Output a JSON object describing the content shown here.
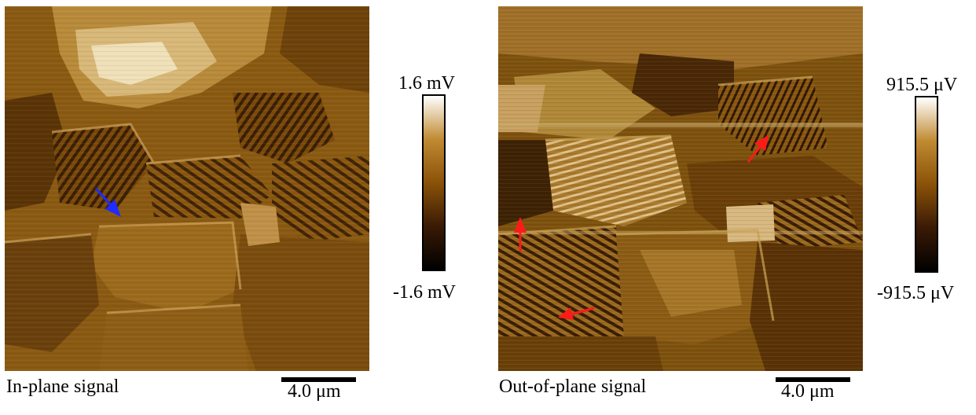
{
  "panels": [
    {
      "caption": "In-plane signal",
      "scale_bar_label": "4.0 μm",
      "colorbar": {
        "max_label": "1.6 mV",
        "min_label": "-1.6 mV"
      },
      "arrows": [
        {
          "color": "#1f2bff"
        }
      ]
    },
    {
      "caption": "Out-of-plane signal",
      "scale_bar_label": "4.0 μm",
      "colorbar": {
        "max_label": "915.5 μV",
        "min_label": "-915.5 μV"
      },
      "arrows": [
        {
          "color": "#ff1a1a"
        },
        {
          "color": "#ff1a1a"
        },
        {
          "color": "#ff1a1a"
        }
      ]
    }
  ],
  "colormap": {
    "colors": [
      "#000000",
      "#3a1a05",
      "#8a5208",
      "#c08a32",
      "#ffffff"
    ]
  }
}
